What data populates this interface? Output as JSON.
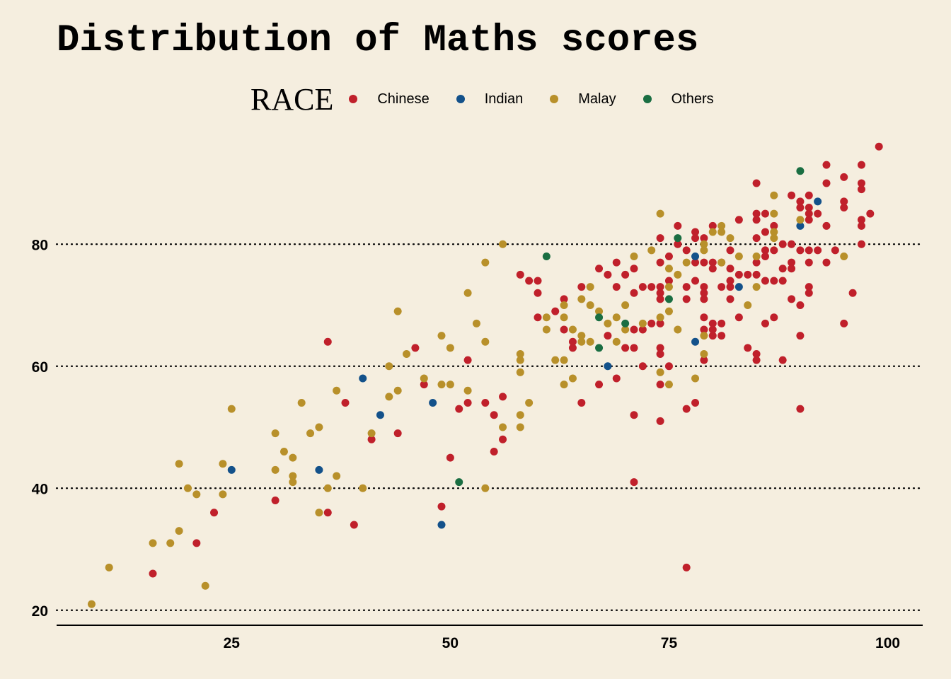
{
  "chart_data": {
    "type": "scatter",
    "title": "Distribution of Maths scores",
    "xlabel": "",
    "ylabel": "",
    "xlim": [
      5,
      104
    ],
    "ylim": [
      18,
      98
    ],
    "x_ticks": [
      25,
      50,
      75,
      100
    ],
    "y_ticks": [
      20,
      40,
      60,
      80
    ],
    "grid": "horizontal-dotted",
    "legend": {
      "title": "RACE",
      "placement": "top"
    },
    "series": [
      {
        "name": "Chinese",
        "color": "#c0202b",
        "points": [
          [
            16,
            26
          ],
          [
            21,
            31
          ],
          [
            23,
            36
          ],
          [
            30,
            38
          ],
          [
            36,
            36
          ],
          [
            39,
            34
          ],
          [
            36,
            64
          ],
          [
            38,
            54
          ],
          [
            41,
            48
          ],
          [
            44,
            49
          ],
          [
            47,
            57
          ],
          [
            46,
            63
          ],
          [
            49,
            37
          ],
          [
            50,
            45
          ],
          [
            51,
            53
          ],
          [
            52,
            54
          ],
          [
            52,
            61
          ],
          [
            54,
            54
          ],
          [
            55,
            52
          ],
          [
            55,
            46
          ],
          [
            56,
            48
          ],
          [
            56,
            55
          ],
          [
            58,
            75
          ],
          [
            59,
            74
          ],
          [
            60,
            74
          ],
          [
            60,
            72
          ],
          [
            60,
            68
          ],
          [
            62,
            69
          ],
          [
            63,
            71
          ],
          [
            63,
            66
          ],
          [
            64,
            64
          ],
          [
            64,
            63
          ],
          [
            65,
            73
          ],
          [
            65,
            54
          ],
          [
            67,
            57
          ],
          [
            67,
            76
          ],
          [
            68,
            75
          ],
          [
            68,
            65
          ],
          [
            69,
            77
          ],
          [
            69,
            73
          ],
          [
            69,
            58
          ],
          [
            70,
            75
          ],
          [
            70,
            63
          ],
          [
            71,
            76
          ],
          [
            71,
            72
          ],
          [
            71,
            66
          ],
          [
            71,
            63
          ],
          [
            71,
            52
          ],
          [
            71,
            41
          ],
          [
            72,
            73
          ],
          [
            72,
            66
          ],
          [
            72,
            60
          ],
          [
            73,
            73
          ],
          [
            73,
            67
          ],
          [
            74,
            81
          ],
          [
            74,
            77
          ],
          [
            74,
            73
          ],
          [
            74,
            72
          ],
          [
            74,
            71
          ],
          [
            74,
            67
          ],
          [
            74,
            63
          ],
          [
            74,
            62
          ],
          [
            74,
            57
          ],
          [
            74,
            51
          ],
          [
            75,
            78
          ],
          [
            75,
            74
          ],
          [
            75,
            60
          ],
          [
            76,
            83
          ],
          [
            76,
            80
          ],
          [
            77,
            79
          ],
          [
            77,
            73
          ],
          [
            77,
            71
          ],
          [
            77,
            53
          ],
          [
            77,
            27
          ],
          [
            78,
            82
          ],
          [
            78,
            81
          ],
          [
            78,
            77
          ],
          [
            78,
            74
          ],
          [
            78,
            54
          ],
          [
            79,
            81
          ],
          [
            79,
            77
          ],
          [
            79,
            73
          ],
          [
            79,
            72
          ],
          [
            79,
            71
          ],
          [
            79,
            68
          ],
          [
            79,
            66
          ],
          [
            79,
            61
          ],
          [
            80,
            83
          ],
          [
            80,
            77
          ],
          [
            80,
            76
          ],
          [
            80,
            67
          ],
          [
            80,
            66
          ],
          [
            80,
            65
          ],
          [
            81,
            77
          ],
          [
            81,
            73
          ],
          [
            81,
            67
          ],
          [
            81,
            65
          ],
          [
            82,
            79
          ],
          [
            82,
            76
          ],
          [
            82,
            74
          ],
          [
            82,
            73
          ],
          [
            82,
            71
          ],
          [
            83,
            84
          ],
          [
            83,
            75
          ],
          [
            83,
            68
          ],
          [
            84,
            75
          ],
          [
            84,
            63
          ],
          [
            85,
            90
          ],
          [
            85,
            85
          ],
          [
            85,
            84
          ],
          [
            85,
            81
          ],
          [
            85,
            77
          ],
          [
            85,
            75
          ],
          [
            85,
            62
          ],
          [
            85,
            61
          ],
          [
            86,
            85
          ],
          [
            86,
            82
          ],
          [
            86,
            79
          ],
          [
            86,
            78
          ],
          [
            86,
            74
          ],
          [
            86,
            67
          ],
          [
            87,
            83
          ],
          [
            87,
            79
          ],
          [
            87,
            74
          ],
          [
            87,
            68
          ],
          [
            88,
            80
          ],
          [
            88,
            76
          ],
          [
            88,
            74
          ],
          [
            88,
            61
          ],
          [
            89,
            88
          ],
          [
            89,
            80
          ],
          [
            89,
            77
          ],
          [
            89,
            76
          ],
          [
            89,
            71
          ],
          [
            90,
            87
          ],
          [
            90,
            86
          ],
          [
            90,
            79
          ],
          [
            90,
            70
          ],
          [
            90,
            65
          ],
          [
            90,
            53
          ],
          [
            91,
            88
          ],
          [
            91,
            86
          ],
          [
            91,
            85
          ],
          [
            91,
            84
          ],
          [
            91,
            79
          ],
          [
            91,
            77
          ],
          [
            91,
            73
          ],
          [
            91,
            72
          ],
          [
            92,
            85
          ],
          [
            92,
            79
          ],
          [
            93,
            93
          ],
          [
            93,
            90
          ],
          [
            93,
            83
          ],
          [
            93,
            77
          ],
          [
            94,
            79
          ],
          [
            95,
            91
          ],
          [
            95,
            87
          ],
          [
            95,
            86
          ],
          [
            95,
            67
          ],
          [
            96,
            72
          ],
          [
            97,
            93
          ],
          [
            97,
            90
          ],
          [
            97,
            89
          ],
          [
            97,
            84
          ],
          [
            97,
            83
          ],
          [
            97,
            80
          ],
          [
            98,
            85
          ],
          [
            99,
            96
          ]
        ]
      },
      {
        "name": "Indian",
        "color": "#13518a",
        "points": [
          [
            25,
            43
          ],
          [
            35,
            43
          ],
          [
            40,
            58
          ],
          [
            42,
            52
          ],
          [
            48,
            54
          ],
          [
            49,
            34
          ],
          [
            68,
            60
          ],
          [
            78,
            78
          ],
          [
            78,
            64
          ],
          [
            83,
            73
          ],
          [
            90,
            83
          ],
          [
            92,
            87
          ]
        ]
      },
      {
        "name": "Malay",
        "color": "#b8902a",
        "points": [
          [
            9,
            21
          ],
          [
            11,
            27
          ],
          [
            16,
            31
          ],
          [
            18,
            31
          ],
          [
            19,
            44
          ],
          [
            19,
            33
          ],
          [
            20,
            40
          ],
          [
            21,
            39
          ],
          [
            22,
            24
          ],
          [
            24,
            44
          ],
          [
            24,
            39
          ],
          [
            25,
            53
          ],
          [
            30,
            49
          ],
          [
            30,
            43
          ],
          [
            31,
            46
          ],
          [
            32,
            45
          ],
          [
            32,
            42
          ],
          [
            32,
            41
          ],
          [
            33,
            54
          ],
          [
            34,
            49
          ],
          [
            35,
            50
          ],
          [
            35,
            36
          ],
          [
            36,
            40
          ],
          [
            37,
            56
          ],
          [
            37,
            42
          ],
          [
            40,
            40
          ],
          [
            41,
            49
          ],
          [
            43,
            60
          ],
          [
            43,
            55
          ],
          [
            44,
            69
          ],
          [
            44,
            56
          ],
          [
            45,
            62
          ],
          [
            47,
            58
          ],
          [
            49,
            65
          ],
          [
            49,
            57
          ],
          [
            50,
            63
          ],
          [
            50,
            57
          ],
          [
            52,
            72
          ],
          [
            52,
            56
          ],
          [
            53,
            67
          ],
          [
            54,
            77
          ],
          [
            54,
            64
          ],
          [
            54,
            40
          ],
          [
            56,
            80
          ],
          [
            56,
            50
          ],
          [
            58,
            62
          ],
          [
            58,
            61
          ],
          [
            58,
            59
          ],
          [
            58,
            52
          ],
          [
            58,
            50
          ],
          [
            59,
            54
          ],
          [
            61,
            68
          ],
          [
            61,
            66
          ],
          [
            62,
            61
          ],
          [
            63,
            70
          ],
          [
            63,
            68
          ],
          [
            63,
            61
          ],
          [
            63,
            57
          ],
          [
            64,
            66
          ],
          [
            64,
            58
          ],
          [
            65,
            71
          ],
          [
            65,
            65
          ],
          [
            65,
            64
          ],
          [
            66,
            73
          ],
          [
            66,
            70
          ],
          [
            66,
            64
          ],
          [
            67,
            69
          ],
          [
            68,
            67
          ],
          [
            69,
            68
          ],
          [
            69,
            64
          ],
          [
            70,
            70
          ],
          [
            70,
            66
          ],
          [
            71,
            78
          ],
          [
            72,
            67
          ],
          [
            73,
            79
          ],
          [
            74,
            85
          ],
          [
            74,
            68
          ],
          [
            74,
            59
          ],
          [
            75,
            76
          ],
          [
            75,
            73
          ],
          [
            75,
            69
          ],
          [
            75,
            57
          ],
          [
            76,
            75
          ],
          [
            76,
            66
          ],
          [
            77,
            77
          ],
          [
            78,
            58
          ],
          [
            79,
            80
          ],
          [
            79,
            79
          ],
          [
            79,
            65
          ],
          [
            79,
            62
          ],
          [
            80,
            82
          ],
          [
            81,
            83
          ],
          [
            81,
            82
          ],
          [
            81,
            77
          ],
          [
            82,
            81
          ],
          [
            83,
            78
          ],
          [
            84,
            70
          ],
          [
            85,
            78
          ],
          [
            85,
            73
          ],
          [
            87,
            88
          ],
          [
            87,
            85
          ],
          [
            87,
            82
          ],
          [
            87,
            81
          ],
          [
            90,
            84
          ],
          [
            95,
            78
          ]
        ]
      },
      {
        "name": "Others",
        "color": "#1a6e42",
        "points": [
          [
            51,
            41
          ],
          [
            61,
            78
          ],
          [
            67,
            68
          ],
          [
            67,
            63
          ],
          [
            70,
            67
          ],
          [
            75,
            71
          ],
          [
            76,
            81
          ],
          [
            90,
            92
          ]
        ]
      }
    ]
  }
}
